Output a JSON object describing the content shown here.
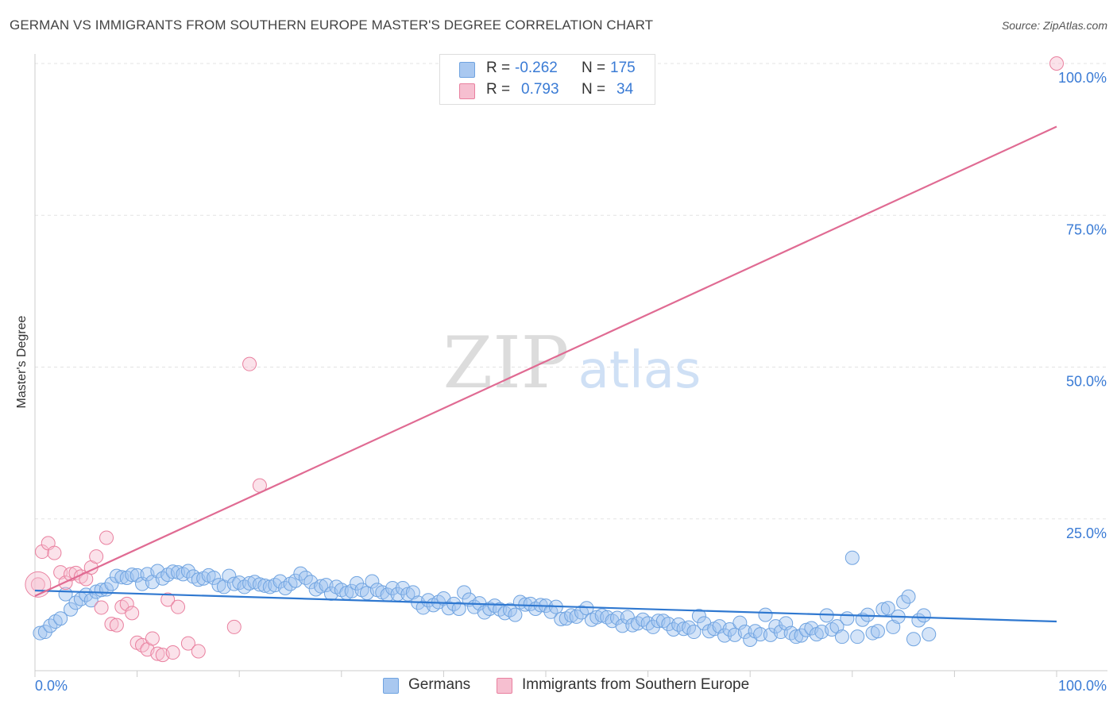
{
  "title": "GERMAN VS IMMIGRANTS FROM SOUTHERN EUROPE MASTER'S DEGREE CORRELATION CHART",
  "source": "Source: ZipAtlas.com",
  "watermark": {
    "zip": "ZIP",
    "atlas": "atlas"
  },
  "legend": {
    "rows": [
      {
        "r_label": "R =",
        "r_value": "-0.262",
        "n_label": "N =",
        "n_value": "175",
        "color": "#a9c8f0",
        "border": "#6fa3e0"
      },
      {
        "r_label": "R =",
        "r_value": "0.793",
        "n_label": "N =",
        "n_value": "34",
        "color": "#f6bfd0",
        "border": "#e9809f"
      }
    ]
  },
  "bottom_legend": [
    {
      "label": "Germans",
      "color": "#a9c8f0",
      "border": "#6fa3e0"
    },
    {
      "label": "Immigrants from Southern Europe",
      "color": "#f6bfd0",
      "border": "#e9809f"
    }
  ],
  "chart_data": {
    "type": "scatter",
    "title": "GERMAN VS IMMIGRANTS FROM SOUTHERN EUROPE MASTER'S DEGREE CORRELATION CHART",
    "xlabel": "",
    "ylabel": "Master's Degree",
    "xlim": [
      0,
      100
    ],
    "ylim": [
      0,
      100
    ],
    "x_tick_labels": [
      "0.0%",
      "100.0%"
    ],
    "y_ticks": [
      25,
      50,
      75,
      100
    ],
    "y_tick_labels": [
      "25.0%",
      "50.0%",
      "75.0%",
      "100.0%"
    ],
    "grid": true,
    "series": [
      {
        "name": "Germans",
        "color": "#6fa3e0",
        "fill": "rgba(160,196,240,0.45)",
        "trend": {
          "x": [
            0,
            100
          ],
          "y": [
            13.2,
            8.1
          ]
        },
        "points": [
          [
            0.5,
            6.2
          ],
          [
            1.0,
            6.4
          ],
          [
            1.5,
            7.4
          ],
          [
            2.0,
            8.1
          ],
          [
            2.5,
            8.6
          ],
          [
            3.0,
            12.6
          ],
          [
            3.5,
            10.1
          ],
          [
            4.0,
            11.2
          ],
          [
            4.5,
            11.8
          ],
          [
            5.0,
            12.5
          ],
          [
            5.5,
            11.6
          ],
          [
            6.0,
            13.0
          ],
          [
            6.5,
            13.3
          ],
          [
            7.0,
            13.4
          ],
          [
            7.5,
            14.3
          ],
          [
            8.0,
            15.6
          ],
          [
            8.5,
            15.4
          ],
          [
            9.0,
            15.3
          ],
          [
            9.5,
            15.8
          ],
          [
            10.0,
            15.7
          ],
          [
            10.5,
            14.3
          ],
          [
            11.0,
            15.9
          ],
          [
            11.5,
            14.6
          ],
          [
            12.0,
            16.4
          ],
          [
            12.5,
            15.2
          ],
          [
            13.0,
            15.8
          ],
          [
            13.5,
            16.3
          ],
          [
            14.0,
            16.2
          ],
          [
            14.5,
            15.9
          ],
          [
            15.0,
            16.4
          ],
          [
            15.5,
            15.5
          ],
          [
            16.0,
            15.0
          ],
          [
            16.5,
            15.2
          ],
          [
            17.0,
            15.7
          ],
          [
            17.5,
            15.3
          ],
          [
            18.0,
            14.1
          ],
          [
            18.5,
            13.8
          ],
          [
            19.0,
            15.6
          ],
          [
            19.5,
            14.3
          ],
          [
            20.0,
            14.5
          ],
          [
            20.5,
            13.8
          ],
          [
            21.0,
            14.4
          ],
          [
            21.5,
            14.6
          ],
          [
            22.0,
            14.2
          ],
          [
            22.5,
            14.0
          ],
          [
            23.0,
            13.8
          ],
          [
            23.5,
            14.1
          ],
          [
            24.0,
            14.7
          ],
          [
            24.5,
            13.6
          ],
          [
            25.0,
            14.3
          ],
          [
            25.5,
            14.8
          ],
          [
            26.0,
            16.0
          ],
          [
            26.5,
            15.3
          ],
          [
            27.0,
            14.6
          ],
          [
            27.5,
            13.4
          ],
          [
            28.0,
            13.9
          ],
          [
            28.5,
            14.1
          ],
          [
            29.0,
            12.7
          ],
          [
            29.5,
            13.8
          ],
          [
            30.0,
            13.3
          ],
          [
            30.5,
            12.8
          ],
          [
            31.0,
            13.1
          ],
          [
            31.5,
            14.4
          ],
          [
            32.0,
            13.3
          ],
          [
            32.5,
            12.8
          ],
          [
            33.0,
            14.7
          ],
          [
            33.5,
            13.3
          ],
          [
            34.0,
            12.9
          ],
          [
            34.5,
            12.5
          ],
          [
            35.0,
            13.6
          ],
          [
            35.5,
            12.6
          ],
          [
            36.0,
            13.6
          ],
          [
            36.5,
            12.6
          ],
          [
            37.0,
            12.9
          ],
          [
            37.5,
            11.2
          ],
          [
            38.0,
            10.4
          ],
          [
            38.5,
            11.6
          ],
          [
            39.0,
            10.8
          ],
          [
            39.5,
            11.3
          ],
          [
            40.0,
            11.9
          ],
          [
            40.5,
            10.3
          ],
          [
            41.0,
            11.0
          ],
          [
            41.5,
            10.2
          ],
          [
            42.0,
            12.9
          ],
          [
            42.5,
            11.7
          ],
          [
            43.0,
            10.5
          ],
          [
            43.5,
            11.1
          ],
          [
            44.0,
            9.6
          ],
          [
            44.5,
            10.2
          ],
          [
            45.0,
            10.7
          ],
          [
            45.5,
            10.1
          ],
          [
            46.0,
            9.5
          ],
          [
            46.5,
            10.0
          ],
          [
            47.0,
            9.2
          ],
          [
            47.5,
            11.3
          ],
          [
            48.0,
            10.9
          ],
          [
            48.5,
            11.0
          ],
          [
            49.0,
            10.2
          ],
          [
            49.5,
            10.8
          ],
          [
            50.0,
            10.7
          ],
          [
            50.5,
            9.7
          ],
          [
            51.0,
            10.5
          ],
          [
            51.5,
            8.5
          ],
          [
            52.0,
            8.6
          ],
          [
            52.5,
            9.1
          ],
          [
            53.0,
            8.9
          ],
          [
            53.5,
            9.6
          ],
          [
            54.0,
            10.3
          ],
          [
            54.5,
            8.4
          ],
          [
            55.0,
            8.8
          ],
          [
            55.5,
            9.1
          ],
          [
            56.0,
            8.8
          ],
          [
            56.5,
            8.2
          ],
          [
            57.0,
            8.7
          ],
          [
            57.5,
            7.4
          ],
          [
            58.0,
            8.8
          ],
          [
            58.5,
            7.5
          ],
          [
            59.0,
            7.8
          ],
          [
            59.5,
            8.4
          ],
          [
            60.0,
            7.8
          ],
          [
            60.5,
            7.2
          ],
          [
            61.0,
            8.2
          ],
          [
            61.5,
            8.2
          ],
          [
            62.0,
            7.7
          ],
          [
            62.5,
            6.8
          ],
          [
            63.0,
            7.6
          ],
          [
            63.5,
            6.9
          ],
          [
            64.0,
            7.1
          ],
          [
            64.5,
            6.4
          ],
          [
            65.0,
            9.0
          ],
          [
            65.5,
            7.8
          ],
          [
            66.0,
            6.5
          ],
          [
            66.5,
            6.9
          ],
          [
            67.0,
            7.3
          ],
          [
            67.5,
            5.8
          ],
          [
            68.0,
            6.8
          ],
          [
            68.5,
            5.9
          ],
          [
            69.0,
            7.9
          ],
          [
            69.5,
            6.4
          ],
          [
            70.0,
            5.1
          ],
          [
            70.5,
            6.5
          ],
          [
            71.0,
            6.0
          ],
          [
            71.5,
            9.2
          ],
          [
            72.0,
            5.9
          ],
          [
            72.5,
            7.3
          ],
          [
            73.0,
            6.4
          ],
          [
            73.5,
            7.8
          ],
          [
            74.0,
            6.2
          ],
          [
            74.5,
            5.6
          ],
          [
            75.0,
            5.8
          ],
          [
            75.5,
            6.7
          ],
          [
            76.0,
            7.0
          ],
          [
            76.5,
            6.0
          ],
          [
            77.0,
            6.4
          ],
          [
            77.5,
            9.1
          ],
          [
            78.0,
            6.8
          ],
          [
            78.5,
            7.3
          ],
          [
            79.0,
            5.6
          ],
          [
            79.5,
            8.6
          ],
          [
            80.0,
            18.6
          ],
          [
            80.5,
            5.6
          ],
          [
            81.0,
            8.4
          ],
          [
            81.5,
            9.2
          ],
          [
            82.0,
            6.2
          ],
          [
            82.5,
            6.5
          ],
          [
            83.0,
            10.1
          ],
          [
            83.5,
            10.3
          ],
          [
            84.0,
            7.2
          ],
          [
            84.5,
            8.9
          ],
          [
            85.0,
            11.3
          ],
          [
            85.5,
            12.2
          ],
          [
            86.0,
            5.2
          ],
          [
            86.5,
            8.3
          ],
          [
            87.0,
            9.1
          ],
          [
            87.5,
            6.0
          ]
        ]
      },
      {
        "name": "Immigrants from Southern Europe",
        "color": "#e9809f",
        "fill": "rgba(246,191,208,0.45)",
        "trend": {
          "x": [
            0,
            100
          ],
          "y": [
            12.3,
            89.6
          ]
        },
        "points": [
          [
            0.3,
            14.2
          ],
          [
            0.7,
            19.6
          ],
          [
            1.3,
            21.0
          ],
          [
            1.9,
            19.4
          ],
          [
            2.5,
            16.2
          ],
          [
            3.0,
            14.5
          ],
          [
            3.5,
            15.9
          ],
          [
            4.0,
            16.1
          ],
          [
            4.5,
            15.5
          ],
          [
            5.0,
            15.1
          ],
          [
            5.5,
            17.0
          ],
          [
            6.0,
            18.8
          ],
          [
            6.5,
            10.4
          ],
          [
            7.0,
            21.9
          ],
          [
            7.5,
            7.7
          ],
          [
            8.0,
            7.5
          ],
          [
            8.5,
            10.5
          ],
          [
            9.0,
            11.0
          ],
          [
            9.5,
            9.5
          ],
          [
            10.0,
            4.6
          ],
          [
            10.5,
            4.2
          ],
          [
            11.0,
            3.5
          ],
          [
            11.5,
            5.3
          ],
          [
            12.0,
            2.8
          ],
          [
            12.5,
            2.6
          ],
          [
            13.0,
            11.7
          ],
          [
            13.5,
            3.0
          ],
          [
            14.0,
            10.5
          ],
          [
            15.0,
            4.5
          ],
          [
            16.0,
            3.2
          ],
          [
            19.5,
            7.2
          ],
          [
            21.0,
            50.5
          ],
          [
            22.0,
            30.5
          ],
          [
            100.0,
            100.0
          ]
        ]
      }
    ]
  }
}
